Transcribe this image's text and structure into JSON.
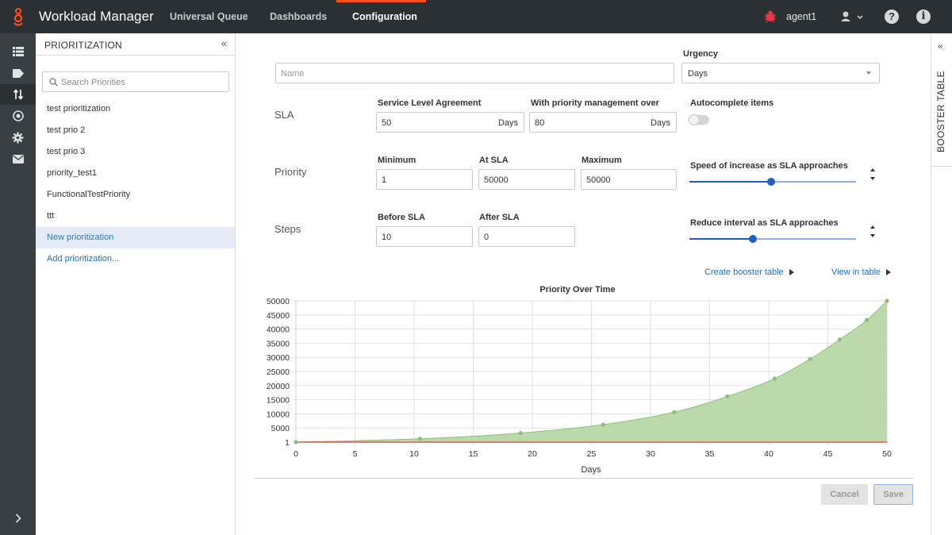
{
  "app": {
    "title": "Workload Manager",
    "tabs": [
      {
        "label": "Universal Queue",
        "active": false
      },
      {
        "label": "Dashboards",
        "active": false
      },
      {
        "label": "Configuration",
        "active": true
      }
    ],
    "agent_name": "agent1",
    "accent_color": "#ff4f1f"
  },
  "rail": {
    "icons": [
      "list-icon",
      "tag-icon",
      "transfer-icon",
      "target-icon",
      "gear-icon",
      "mail-icon"
    ],
    "active": "transfer-icon",
    "expand_icon": "chevron-right-icon"
  },
  "prioritization": {
    "title": "PRIORITIZATION",
    "collapse_glyph": "«",
    "search_placeholder": "Search Priorities",
    "items": [
      {
        "label": "test prioritization",
        "selected": false
      },
      {
        "label": "test prio 2",
        "selected": false
      },
      {
        "label": "test prio 3",
        "selected": false
      },
      {
        "label": "priority_test1",
        "selected": false
      },
      {
        "label": "FunctionalTestPriority",
        "selected": false
      },
      {
        "label": "ttt",
        "selected": false
      },
      {
        "label": "New prioritization",
        "selected": true
      }
    ],
    "add_label": "Add prioritization..."
  },
  "form": {
    "name_placeholder": "Name",
    "urgency": {
      "label": "Urgency",
      "value": "Days"
    },
    "sla": {
      "row_label": "SLA",
      "agreement_label": "Service Level Agreement",
      "agreement_value": "50",
      "agreement_unit": "Days",
      "priority_mgmt_label": "With priority management over",
      "priority_mgmt_value": "80",
      "priority_mgmt_unit": "Days",
      "autocomplete_label": "Autocomplete items",
      "autocomplete_on": false
    },
    "priority": {
      "row_label": "Priority",
      "minimum_label": "Minimum",
      "minimum_value": "1",
      "at_sla_label": "At SLA",
      "at_sla_value": "50000",
      "maximum_label": "Maximum",
      "maximum_value": "50000",
      "speed_label": "Speed of increase as SLA approaches",
      "speed_level": 0.49
    },
    "steps": {
      "row_label": "Steps",
      "before_label": "Before SLA",
      "before_value": "10",
      "after_label": "After SLA",
      "after_value": "0",
      "reduce_label": "Reduce interval as SLA approaches",
      "reduce_level": 0.38
    },
    "create_booster_label": "Create booster table",
    "view_table_label": "View in table",
    "cancel_label": "Cancel",
    "save_label": "Save"
  },
  "booster_panel": {
    "label": "BOOSTER TABLE",
    "collapse_glyph": "«"
  },
  "chart_data": {
    "type": "area",
    "title": "Priority Over Time",
    "xlabel": "Days",
    "ylabel": "",
    "xlim": [
      0,
      50
    ],
    "ylim": [
      1,
      50000
    ],
    "x_ticks": [
      0,
      5,
      10,
      15,
      20,
      25,
      30,
      35,
      40,
      45,
      50
    ],
    "y_ticks": [
      1,
      5000,
      10000,
      15000,
      20000,
      25000,
      30000,
      35000,
      40000,
      45000,
      50000
    ],
    "grid": true,
    "series": [
      {
        "color": "#8cc17a",
        "fill": "#b6d8a8",
        "points": [
          [
            0,
            1
          ],
          [
            10.5,
            1200
          ],
          [
            19,
            3200
          ],
          [
            26,
            6200
          ],
          [
            32,
            10600
          ],
          [
            36.5,
            16200
          ],
          [
            40.5,
            22500
          ],
          [
            43.5,
            29400
          ],
          [
            46,
            36300
          ],
          [
            48.3,
            43200
          ],
          [
            50,
            50000
          ]
        ]
      },
      {
        "color": "#e05a4f",
        "points": [
          [
            0,
            1
          ],
          [
            50,
            1
          ]
        ]
      }
    ]
  }
}
